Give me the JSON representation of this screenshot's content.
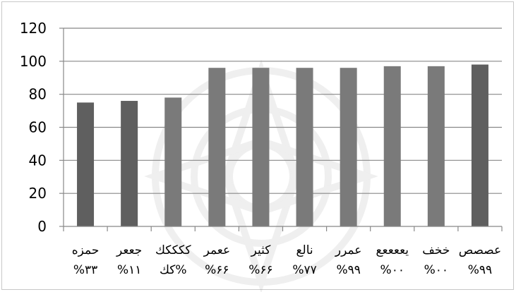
{
  "chart_data": {
    "type": "bar",
    "categories": [
      {
        "line1": "حمزه",
        "line2": "%٣٣"
      },
      {
        "line1": "جععر",
        "line2": "%١١"
      },
      {
        "line1": "ككككك",
        "line2": "كك%"
      },
      {
        "line1": "ععمر",
        "line2": "%۶۶"
      },
      {
        "line1": "كثير",
        "line2": "%۶۶"
      },
      {
        "line1": "نالع",
        "line2": "%٧٧"
      },
      {
        "line1": "عمرر",
        "line2": "%٩٩"
      },
      {
        "line1": "يععععع",
        "line2": "%٠٠"
      },
      {
        "line1": "خخف",
        "line2": "%٠٠"
      },
      {
        "line1": "عصصص",
        "line2": "%٩٩"
      }
    ],
    "values": [
      75,
      76,
      78,
      96,
      96,
      96,
      96,
      97,
      97,
      98
    ],
    "ylim": [
      0,
      120
    ],
    "yticks": [
      "0",
      "20",
      "40",
      "60",
      "80",
      "100",
      "120"
    ],
    "grid": true,
    "bar_colors": [
      "#5f5f5f",
      "#5f5f5f",
      "#7a7a7a",
      "#7a7a7a",
      "#7a7a7a",
      "#7a7a7a",
      "#7a7a7a",
      "#7a7a7a",
      "#7a7a7a",
      "#5f5f5f"
    ],
    "gridline_color": "#888888"
  }
}
